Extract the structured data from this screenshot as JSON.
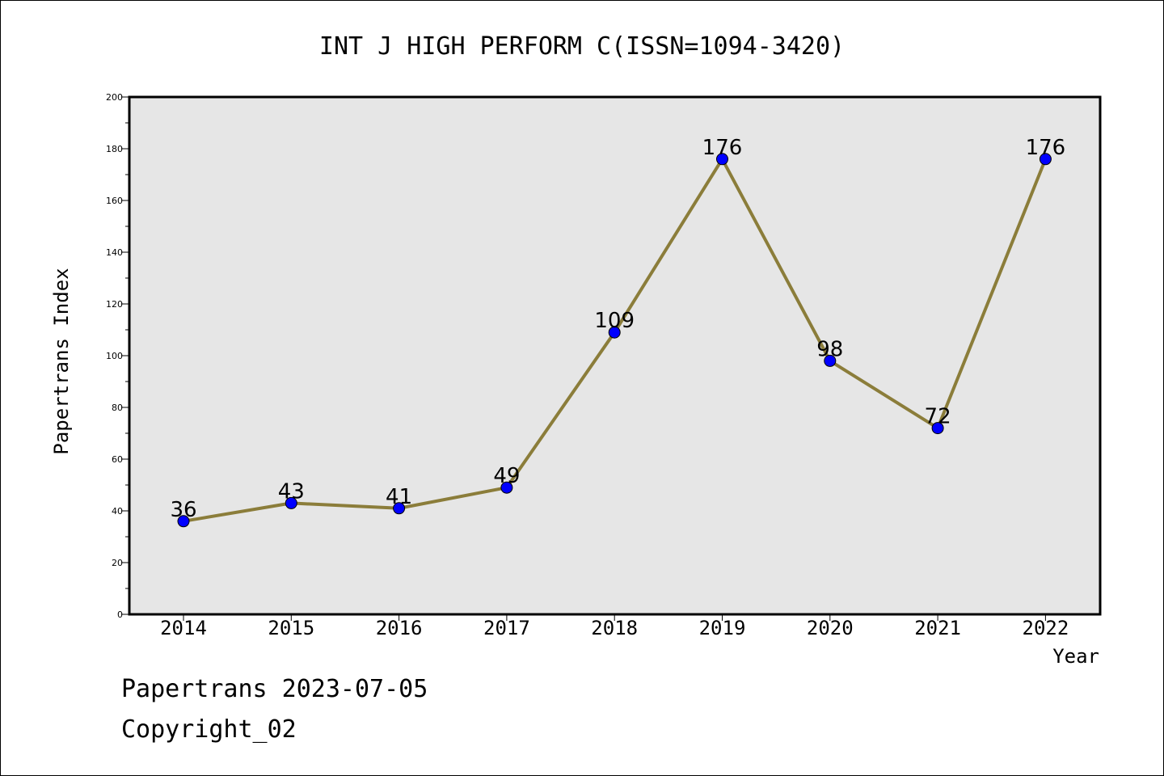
{
  "chart_data": {
    "type": "line",
    "title": "INT J HIGH PERFORM C(ISSN=1094-3420)",
    "xlabel": "Year",
    "ylabel": "Papertrans Index",
    "categories": [
      "2014",
      "2015",
      "2016",
      "2017",
      "2018",
      "2019",
      "2020",
      "2021",
      "2022"
    ],
    "series": [
      {
        "values": [
          36,
          43,
          41,
          49,
          109,
          176,
          98,
          72,
          176
        ]
      }
    ],
    "ylim": [
      0,
      200
    ],
    "yticks": [
      0,
      20,
      40,
      60,
      80,
      100,
      120,
      140,
      160,
      180,
      200
    ],
    "grid": false,
    "colors": {
      "line": "#8B7D3A",
      "marker": "#0000FF",
      "plot_bg": "#E6E6E6"
    }
  },
  "footer": {
    "date_line": "Papertrans 2023-07-05",
    "copyright": "Copyright_02"
  }
}
